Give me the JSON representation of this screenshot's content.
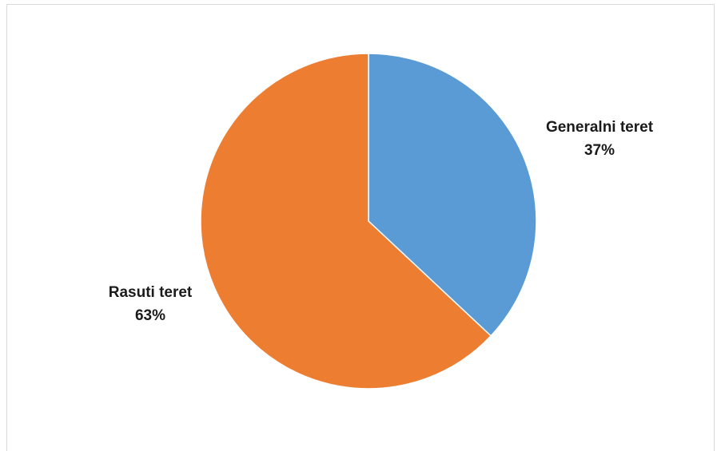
{
  "chart_data": {
    "type": "pie",
    "title": "",
    "slices": [
      {
        "label": "Generalni teret",
        "value": 37,
        "value_label": "37%",
        "color": "#5b9bd5"
      },
      {
        "label": "Rasuti teret",
        "value": 63,
        "value_label": "63%",
        "color": "#ed7d31"
      }
    ],
    "legend": "none",
    "start_angle": "top",
    "direction": "clockwise"
  }
}
